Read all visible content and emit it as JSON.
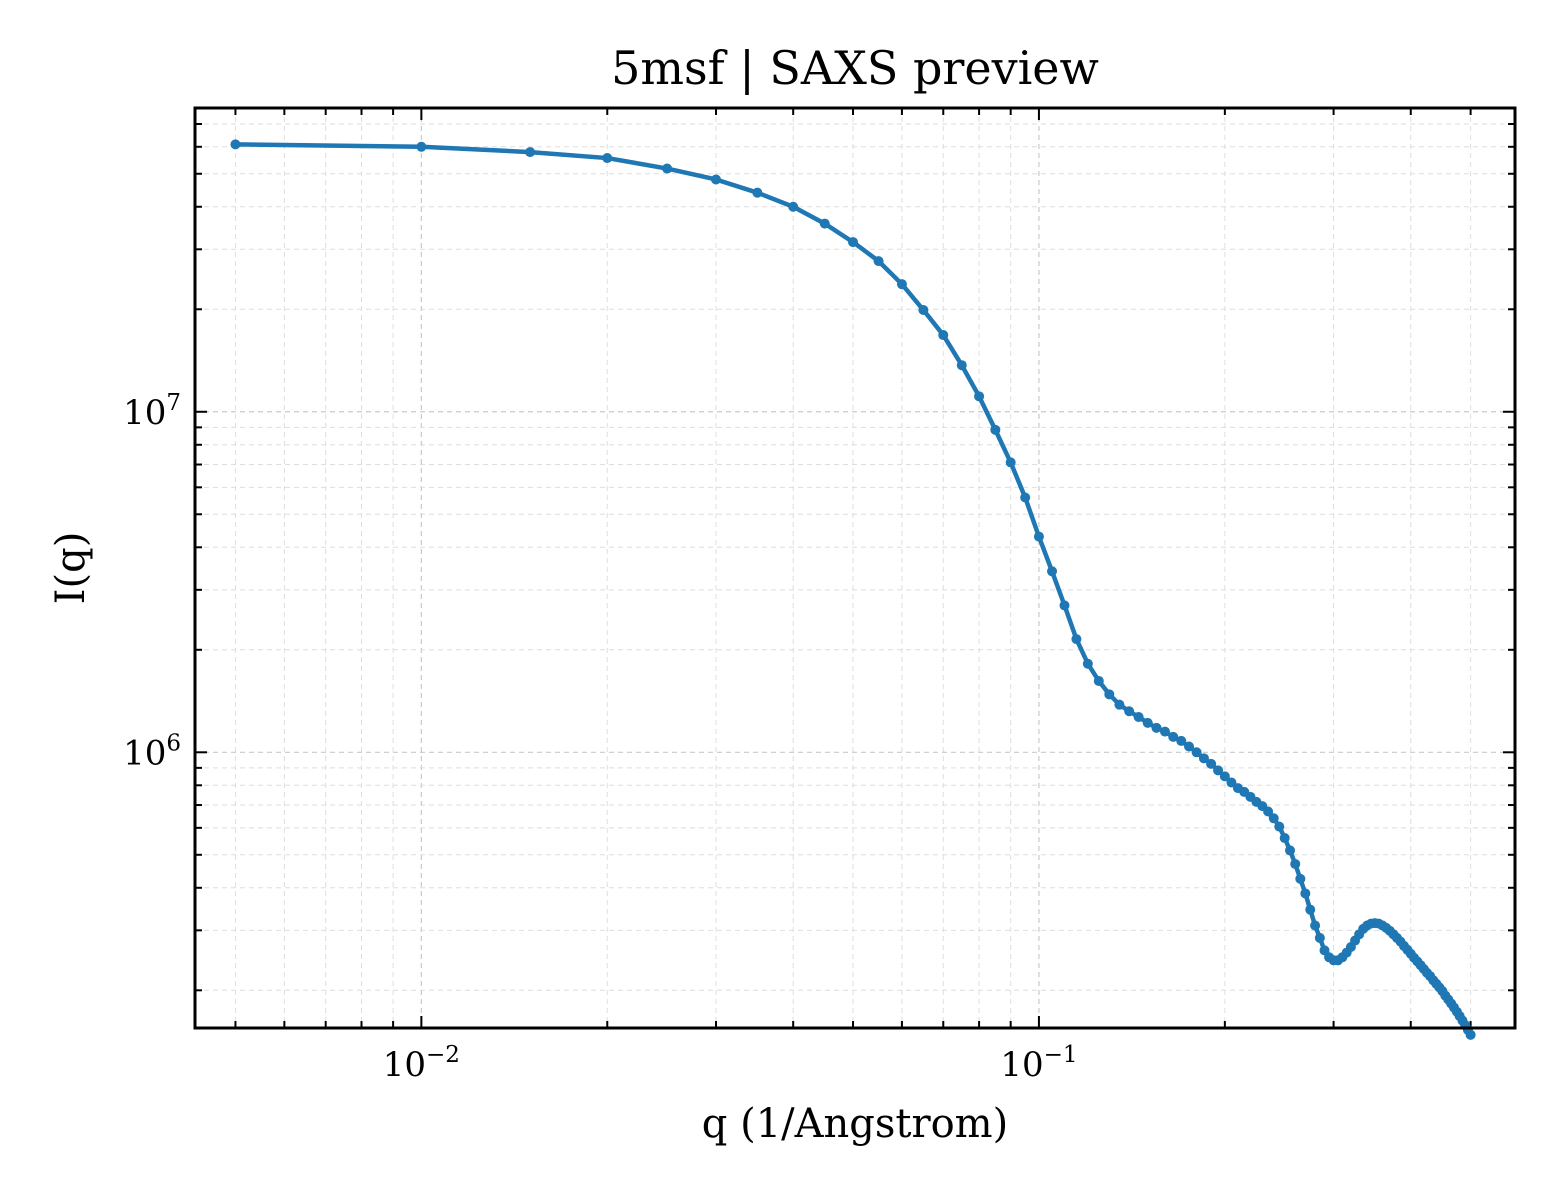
{
  "chart_data": {
    "type": "line",
    "title": "5msf | SAXS preview",
    "xlabel": "q (1/Angstrom)",
    "ylabel": "I(q)",
    "xscale": "log",
    "yscale": "log",
    "xlim": [
      0.0043,
      0.59
    ],
    "ylim": [
      155000,
      78000000
    ],
    "grid": true,
    "legend": "none",
    "x_ticks": [
      {
        "value": 0.01,
        "base": "10",
        "exp": "−2"
      },
      {
        "value": 0.1,
        "base": "10",
        "exp": "−1"
      }
    ],
    "y_ticks": [
      {
        "value": 1000000,
        "base": "10",
        "exp": "6"
      },
      {
        "value": 10000000,
        "base": "10",
        "exp": "7"
      }
    ],
    "series": [
      {
        "color": "#1f77b4",
        "marker": "dot",
        "points": [
          [
            0.005,
            61000000
          ],
          [
            0.01,
            60000000
          ],
          [
            0.015,
            57900000
          ],
          [
            0.02,
            55600000
          ],
          [
            0.025,
            51800000
          ],
          [
            0.03,
            48100000
          ],
          [
            0.035,
            44000000
          ],
          [
            0.04,
            40000000
          ],
          [
            0.045,
            35700000
          ],
          [
            0.05,
            31500000
          ],
          [
            0.055,
            27700000
          ],
          [
            0.06,
            23700000
          ],
          [
            0.065,
            19900000
          ],
          [
            0.07,
            16800000
          ],
          [
            0.075,
            13700000
          ],
          [
            0.08,
            11100000
          ],
          [
            0.085,
            8850000
          ],
          [
            0.09,
            7100000
          ],
          [
            0.095,
            5600000
          ],
          [
            0.1,
            4300000
          ],
          [
            0.105,
            3400000
          ],
          [
            0.11,
            2700000
          ],
          [
            0.115,
            2150000
          ],
          [
            0.12,
            1820000
          ],
          [
            0.125,
            1620000
          ],
          [
            0.13,
            1480000
          ],
          [
            0.135,
            1380000
          ],
          [
            0.14,
            1320000
          ],
          [
            0.145,
            1270000
          ],
          [
            0.15,
            1220000
          ],
          [
            0.155,
            1180000
          ],
          [
            0.16,
            1150000
          ],
          [
            0.165,
            1110000
          ],
          [
            0.17,
            1080000
          ],
          [
            0.175,
            1040000
          ],
          [
            0.18,
            1000000
          ],
          [
            0.185,
            960000
          ],
          [
            0.19,
            925000
          ],
          [
            0.195,
            885000
          ],
          [
            0.2,
            850000
          ],
          [
            0.205,
            815000
          ],
          [
            0.21,
            785000
          ],
          [
            0.215,
            765000
          ],
          [
            0.22,
            740000
          ],
          [
            0.225,
            715000
          ],
          [
            0.23,
            695000
          ],
          [
            0.235,
            670000
          ],
          [
            0.24,
            640000
          ],
          [
            0.245,
            605000
          ],
          [
            0.25,
            560000
          ],
          [
            0.255,
            515000
          ],
          [
            0.26,
            470000
          ],
          [
            0.265,
            425000
          ],
          [
            0.27,
            385000
          ],
          [
            0.275,
            345000
          ],
          [
            0.28,
            310000
          ],
          [
            0.285,
            285000
          ],
          [
            0.29,
            262000
          ],
          [
            0.295,
            250000
          ],
          [
            0.3,
            245000
          ],
          [
            0.305,
            245000
          ],
          [
            0.31,
            250000
          ],
          [
            0.315,
            258000
          ],
          [
            0.32,
            268000
          ],
          [
            0.325,
            280000
          ],
          [
            0.33,
            292000
          ],
          [
            0.335,
            303000
          ],
          [
            0.34,
            310000
          ],
          [
            0.345,
            314000
          ],
          [
            0.35,
            315000
          ],
          [
            0.355,
            314000
          ],
          [
            0.36,
            310000
          ],
          [
            0.365,
            305000
          ],
          [
            0.37,
            299000
          ],
          [
            0.375,
            292000
          ],
          [
            0.38,
            285000
          ],
          [
            0.385,
            278000
          ],
          [
            0.39,
            270000
          ],
          [
            0.395,
            263000
          ],
          [
            0.4,
            256000
          ],
          [
            0.405,
            249000
          ],
          [
            0.41,
            243000
          ],
          [
            0.415,
            237000
          ],
          [
            0.42,
            231000
          ],
          [
            0.425,
            225000
          ],
          [
            0.43,
            220000
          ],
          [
            0.435,
            214000
          ],
          [
            0.44,
            209000
          ],
          [
            0.445,
            204000
          ],
          [
            0.45,
            199000
          ],
          [
            0.455,
            193000
          ],
          [
            0.46,
            188000
          ],
          [
            0.465,
            183000
          ],
          [
            0.47,
            178000
          ],
          [
            0.475,
            173000
          ],
          [
            0.48,
            168000
          ],
          [
            0.485,
            163000
          ],
          [
            0.49,
            158000
          ],
          [
            0.495,
            153000
          ],
          [
            0.5,
            148000
          ]
        ]
      }
    ]
  }
}
